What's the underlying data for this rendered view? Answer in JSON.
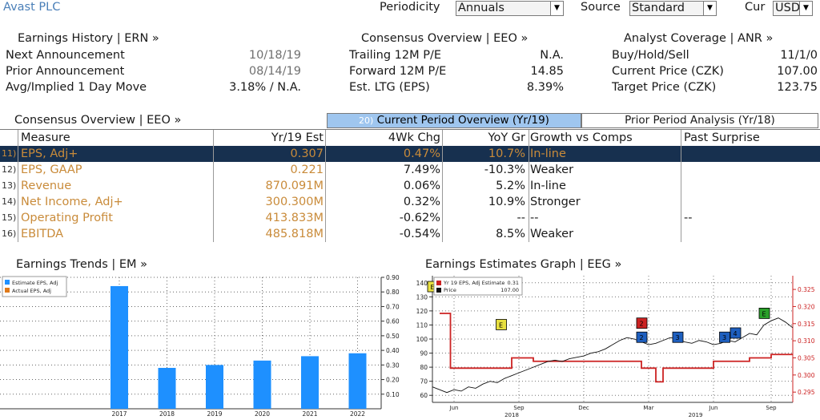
{
  "title": "Avast PLC",
  "controls": {
    "periodicity_label": "Periodicity",
    "periodicity_value": "Annuals",
    "source_label": "Source",
    "source_value": "Standard",
    "cur_label": "Cur",
    "cur_value": "USD"
  },
  "earnings_history": {
    "header": "Earnings History | ERN »",
    "rows": [
      {
        "label": "Next Announcement",
        "value": "10/18/19"
      },
      {
        "label": "Prior Announcement",
        "value": "08/14/19"
      },
      {
        "label": "Avg/Implied 1 Day Move",
        "value": "3.18% / N.A."
      }
    ]
  },
  "consensus_overview_top": {
    "header": "Consensus Overview | EEO »",
    "rows": [
      {
        "label": "Trailing 12M P/E",
        "value": "N.A."
      },
      {
        "label": "Forward 12M P/E",
        "value": "14.85"
      },
      {
        "label": "Est. LTG (EPS)",
        "value": "8.39%"
      }
    ]
  },
  "analyst_coverage": {
    "header": "Analyst Coverage | ANR »",
    "rows": [
      {
        "label": "Buy/Hold/Sell",
        "value": "11/1/0"
      },
      {
        "label": "Current Price (CZK)",
        "value": "107.00"
      },
      {
        "label": "Target Price (CZK)",
        "value": "123.75"
      }
    ]
  },
  "consensus_table": {
    "header": "Consensus Overview | EEO »",
    "tab_current_num": "20)",
    "tab_current": "Current Period Overview (Yr/19)",
    "tab_prior": "Prior Period Analysis (Yr/18)",
    "columns": [
      "Measure",
      "Yr/19 Est",
      "4Wk Chg",
      "YoY Gr",
      "Growth vs Comps",
      "Past Surprise"
    ],
    "rows": [
      {
        "num": "11)",
        "measure": "EPS, Adj+",
        "est": "0.307",
        "chg": "0.47%",
        "yoy": "10.7%",
        "growth": "In-line",
        "surprise": ""
      },
      {
        "num": "12)",
        "measure": "EPS, GAAP",
        "est": "0.221",
        "chg": "7.49%",
        "yoy": "-10.3%",
        "growth": "Weaker",
        "surprise": ""
      },
      {
        "num": "13)",
        "measure": "Revenue",
        "est": "870.091M",
        "chg": "0.06%",
        "yoy": "5.2%",
        "growth": "In-line",
        "surprise": ""
      },
      {
        "num": "14)",
        "measure": "Net Income, Adj+",
        "est": "300.300M",
        "chg": "0.32%",
        "yoy": "10.9%",
        "growth": "Stronger",
        "surprise": ""
      },
      {
        "num": "15)",
        "measure": "Operating Profit",
        "est": "413.833M",
        "chg": "-0.62%",
        "yoy": "--",
        "growth": "--",
        "surprise": "--"
      },
      {
        "num": "16)",
        "measure": "EBITDA",
        "est": "485.818M",
        "chg": "-0.54%",
        "yoy": "8.5%",
        "growth": "Weaker",
        "surprise": ""
      }
    ]
  },
  "chart_data": [
    {
      "type": "bar",
      "title": "Earnings Trends | EM »",
      "categories": [
        "2017",
        "2018",
        "2019",
        "2020",
        "2021",
        "2022"
      ],
      "series": [
        {
          "name": "Estimate EPS, Adj",
          "values": [
            0.84,
            0.28,
            0.3,
            0.33,
            0.36,
            0.38
          ],
          "color": "#1e90ff"
        },
        {
          "name": "Actual EPS, Adj",
          "values": [
            null,
            null,
            null,
            null,
            null,
            null
          ],
          "color": "#e07a1a"
        }
      ],
      "ylim": [
        0,
        0.9
      ],
      "yticks": [
        "0.10",
        "0.20",
        "0.30",
        "0.40",
        "0.50",
        "0.60",
        "0.70",
        "0.80",
        "0.90"
      ],
      "legend": "top-left",
      "grid": true
    },
    {
      "type": "line",
      "title": "Earnings Estimates Graph | EEG »",
      "legend_entries": [
        {
          "name": "Yr 19 EPS, Adj Estimate",
          "value": "0.31",
          "color": "#cc2222"
        },
        {
          "name": "Price",
          "value": "107.00",
          "color": "#111111"
        }
      ],
      "left_axis": {
        "ylim": [
          55,
          145
        ],
        "ticks": [
          "60",
          "70",
          "80",
          "90",
          "100",
          "110",
          "120",
          "130",
          "140"
        ]
      },
      "right_axis": {
        "ylim": [
          0.292,
          0.329
        ],
        "ticks": [
          "0.295",
          "0.300",
          "0.305",
          "0.310",
          "0.315",
          "0.320",
          "0.325"
        ]
      },
      "x_month_labels": [
        "Jun",
        "Sep",
        "Dec",
        "Mar",
        "Jun",
        "Sep"
      ],
      "x_year_labels": [
        "2018",
        "2019"
      ],
      "price_series": [
        [
          0,
          66
        ],
        [
          0.02,
          64
        ],
        [
          0.04,
          62
        ],
        [
          0.06,
          64
        ],
        [
          0.08,
          63
        ],
        [
          0.1,
          66
        ],
        [
          0.12,
          65
        ],
        [
          0.14,
          68
        ],
        [
          0.16,
          70
        ],
        [
          0.18,
          69
        ],
        [
          0.2,
          72
        ],
        [
          0.22,
          74
        ],
        [
          0.24,
          76
        ],
        [
          0.26,
          78
        ],
        [
          0.28,
          80
        ],
        [
          0.3,
          82
        ],
        [
          0.32,
          84
        ],
        [
          0.34,
          85
        ],
        [
          0.36,
          84
        ],
        [
          0.38,
          86
        ],
        [
          0.4,
          87
        ],
        [
          0.42,
          88
        ],
        [
          0.44,
          90
        ],
        [
          0.46,
          91
        ],
        [
          0.48,
          93
        ],
        [
          0.5,
          96
        ],
        [
          0.52,
          99
        ],
        [
          0.54,
          101
        ],
        [
          0.56,
          100
        ],
        [
          0.58,
          98
        ],
        [
          0.6,
          96
        ],
        [
          0.62,
          97
        ],
        [
          0.64,
          99
        ],
        [
          0.66,
          101
        ],
        [
          0.68,
          100
        ],
        [
          0.7,
          98
        ],
        [
          0.72,
          97
        ],
        [
          0.74,
          99
        ],
        [
          0.76,
          98
        ],
        [
          0.78,
          96
        ],
        [
          0.8,
          97
        ],
        [
          0.82,
          99
        ],
        [
          0.84,
          98
        ],
        [
          0.86,
          101
        ],
        [
          0.88,
          104
        ],
        [
          0.9,
          103
        ],
        [
          0.92,
          110
        ],
        [
          0.94,
          113
        ],
        [
          0.96,
          115
        ],
        [
          0.98,
          112
        ],
        [
          1.0,
          108
        ]
      ],
      "estimate_series": [
        [
          0.02,
          0.318
        ],
        [
          0.05,
          0.318
        ],
        [
          0.05,
          0.302
        ],
        [
          0.22,
          0.302
        ],
        [
          0.22,
          0.305
        ],
        [
          0.28,
          0.305
        ],
        [
          0.28,
          0.304
        ],
        [
          0.58,
          0.304
        ],
        [
          0.58,
          0.302
        ],
        [
          0.62,
          0.302
        ],
        [
          0.62,
          0.298
        ],
        [
          0.64,
          0.298
        ],
        [
          0.64,
          0.302
        ],
        [
          0.78,
          0.302
        ],
        [
          0.78,
          0.304
        ],
        [
          0.88,
          0.304
        ],
        [
          0.88,
          0.305
        ],
        [
          0.94,
          0.305
        ],
        [
          0.94,
          0.306
        ],
        [
          1.0,
          0.306
        ]
      ],
      "event_markers": [
        {
          "x": 0.0,
          "y": 137,
          "label": "E",
          "color": "#e8e040"
        },
        {
          "x": 0.19,
          "y": 110,
          "label": "E",
          "color": "#e8e040"
        },
        {
          "x": 0.58,
          "y": 111,
          "label": "2",
          "color": "#cc2222"
        },
        {
          "x": 0.58,
          "y": 101,
          "label": "2",
          "color": "#1e5fbf"
        },
        {
          "x": 0.68,
          "y": 101,
          "label": "3",
          "color": "#1e5fbf"
        },
        {
          "x": 0.81,
          "y": 101,
          "label": "3",
          "color": "#1e5fbf"
        },
        {
          "x": 0.84,
          "y": 104,
          "label": "4",
          "color": "#1e5fbf"
        },
        {
          "x": 0.92,
          "y": 118,
          "label": "E",
          "color": "#2aa02a"
        }
      ]
    }
  ]
}
